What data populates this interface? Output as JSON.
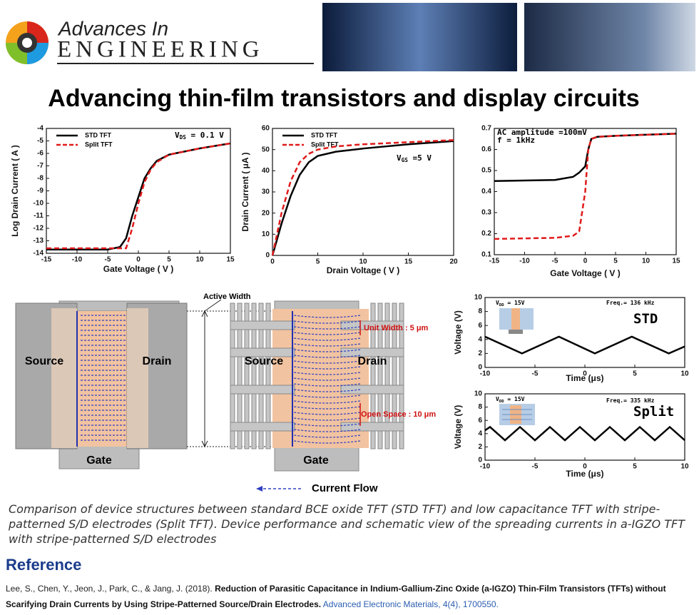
{
  "header": {
    "logo_line1": "Advances In",
    "logo_line2": "ENGINEERING"
  },
  "title": "Advancing thin-film transistors and display circuits",
  "chart_data": [
    {
      "type": "line",
      "ylabel": "Log Drain Current ( A )",
      "xlabel": "Gate Voltage ( V )",
      "annotations": [
        [
          "V",
          "DS",
          " = 0.1 V"
        ]
      ],
      "legend": "upper left",
      "xlim": [
        -15,
        15
      ],
      "xticks": [
        -15,
        -10,
        -5,
        0,
        5,
        10,
        15
      ],
      "ylim": [
        -14,
        -4
      ],
      "yticks": [
        -14,
        -13,
        -12,
        -11,
        -10,
        -9,
        -8,
        -7,
        -6,
        -5,
        -4
      ],
      "series": [
        {
          "name": "STD TFT",
          "color": "#000000",
          "style": "solid",
          "x": [
            -15,
            -5,
            -3,
            -2,
            -1,
            0,
            1,
            2,
            3,
            5,
            10,
            15
          ],
          "values": [
            -13.7,
            -13.7,
            -13.5,
            -12.8,
            -11,
            -9.5,
            -8,
            -7.2,
            -6.6,
            -6.1,
            -5.6,
            -5.2
          ]
        },
        {
          "name": "Split TFT",
          "color": "#e01b1b",
          "style": "dashed",
          "x": [
            -15,
            -5,
            -3,
            -2,
            -1,
            0,
            1,
            2,
            3,
            5,
            10,
            15
          ],
          "values": [
            -13.6,
            -13.6,
            -13.6,
            -13.6,
            -12,
            -10,
            -8.3,
            -7.3,
            -6.7,
            -6.1,
            -5.6,
            -5.2
          ]
        }
      ]
    },
    {
      "type": "line",
      "ylabel": "Drain Current ( μA )",
      "xlabel": "Drain Voltage ( V )",
      "annotations": [
        [
          "V",
          "GS",
          " =5 V"
        ]
      ],
      "legend": "upper left",
      "xlim": [
        0,
        20
      ],
      "xticks": [
        0,
        5,
        10,
        15,
        20
      ],
      "ylim": [
        0,
        60
      ],
      "yticks": [
        0,
        10,
        20,
        30,
        40,
        50,
        60
      ],
      "series": [
        {
          "name": "STD TFT",
          "color": "#000000",
          "style": "solid",
          "x": [
            0,
            1,
            2,
            3,
            4,
            5,
            7,
            10,
            15,
            20
          ],
          "values": [
            0,
            15,
            28,
            38,
            44,
            47,
            49,
            50.5,
            52.5,
            54
          ]
        },
        {
          "name": "Split TFT",
          "color": "#e01b1b",
          "style": "dashed",
          "x": [
            0,
            1,
            2,
            3,
            4,
            5,
            7,
            10,
            15,
            20
          ],
          "values": [
            0,
            20,
            35,
            44,
            48,
            50,
            51.5,
            52.5,
            53.5,
            54.5
          ]
        }
      ]
    },
    {
      "type": "line",
      "xlabel": "Gate Voltage ( V )",
      "annotations": [
        [
          "AC amplitude =100mV"
        ],
        [
          "f = 1kHz"
        ]
      ],
      "xlim": [
        -15,
        15
      ],
      "xticks": [
        -15,
        -10,
        -5,
        0,
        5,
        10,
        15
      ],
      "ylim": [
        0.1,
        0.7
      ],
      "yticks": [
        0.1,
        0.2,
        0.3,
        0.4,
        0.5,
        0.6,
        0.7
      ],
      "series": [
        {
          "color": "#000000",
          "style": "solid",
          "x": [
            -15,
            -5,
            -2,
            -1,
            0,
            0.5,
            1,
            2,
            5,
            15
          ],
          "values": [
            0.45,
            0.455,
            0.47,
            0.49,
            0.52,
            0.6,
            0.65,
            0.66,
            0.665,
            0.675
          ]
        },
        {
          "color": "#e01b1b",
          "style": "dashed",
          "x": [
            -15,
            -5,
            -2,
            -1,
            0,
            0.5,
            1,
            2,
            5,
            15
          ],
          "values": [
            0.175,
            0.18,
            0.19,
            0.21,
            0.4,
            0.6,
            0.65,
            0.66,
            0.665,
            0.675
          ]
        }
      ]
    },
    {
      "type": "line",
      "ylabel": "Voltage (V)",
      "xlabel": "Time (μs)",
      "annotations": [
        [
          "V",
          "DD",
          " = 15V"
        ],
        [
          "Freq.= 136 kHz"
        ],
        [
          "STD"
        ]
      ],
      "xlim": [
        -10,
        10
      ],
      "xticks": [
        -10,
        -5,
        0,
        5,
        10
      ],
      "ylim": [
        0,
        10
      ],
      "yticks": [
        0,
        2,
        4,
        6,
        8,
        10
      ],
      "series": [
        {
          "color": "#000000",
          "style": "solid",
          "x": [
            -10,
            -8.15,
            -6.3,
            -4.45,
            -2.6,
            -0.8,
            1.0,
            2.85,
            4.7,
            6.55,
            8.4,
            10
          ],
          "values": [
            4.4,
            3.2,
            2.0,
            3.2,
            4.4,
            3.2,
            2.0,
            3.2,
            4.4,
            3.2,
            2.0,
            3.0
          ]
        }
      ]
    },
    {
      "type": "line",
      "ylabel": "Voltage (V)",
      "xlabel": "Time (μs)",
      "annotations": [
        [
          "V",
          "DD",
          " = 15V"
        ],
        [
          "Freq.= 335 kHz"
        ],
        [
          "Split"
        ]
      ],
      "xlim": [
        -10,
        10
      ],
      "xticks": [
        -10,
        -5,
        0,
        5,
        10
      ],
      "ylim": [
        0,
        10
      ],
      "yticks": [
        0,
        2,
        4,
        6,
        8,
        10
      ],
      "series": [
        {
          "color": "#000000",
          "style": "solid",
          "x": [
            -10,
            -9.5,
            -8,
            -6.5,
            -5,
            -3.5,
            -2,
            -0.5,
            1,
            2.5,
            4,
            5.5,
            7,
            8.5,
            10
          ],
          "values": [
            4.5,
            5,
            3,
            5,
            3,
            5,
            3,
            5,
            3,
            5,
            3,
            5,
            3,
            5,
            3
          ]
        }
      ]
    }
  ],
  "schematic": {
    "left": {
      "source": "Source",
      "drain": "Drain",
      "gate": "Gate"
    },
    "active_width": "Active Width",
    "right": {
      "source": "Source",
      "drain": "Drain",
      "gate": "Gate",
      "unit_width": "Unit Width : 5 μm",
      "open_space": "Open Space : 10 μm"
    },
    "legend": "Current Flow"
  },
  "caption": "Comparison of device structures between standard BCE oxide TFT (STD TFT) and low capacitance TFT with stripe-patterned S/D electrodes (Split TFT). Device performance and schematic view of the spreading currents in a-IGZO TFT with stripe-patterned S/D electrodes",
  "reference": {
    "heading": "Reference",
    "authors": "Lee, S., Chen, Y., Jeon, J., Park, C., & Jang, J. (2018).",
    "title": "Reduction of Parasitic Capacitance in Indium-Gallium-Zinc Oxide (a-IGZO) Thin-Film Transistors (TFTs) without Scarifying Drain Currents by Using Stripe-Patterned Source/Drain Electrodes.",
    "journal": "Advanced Electronic Materials, 4(4), 1700550."
  }
}
